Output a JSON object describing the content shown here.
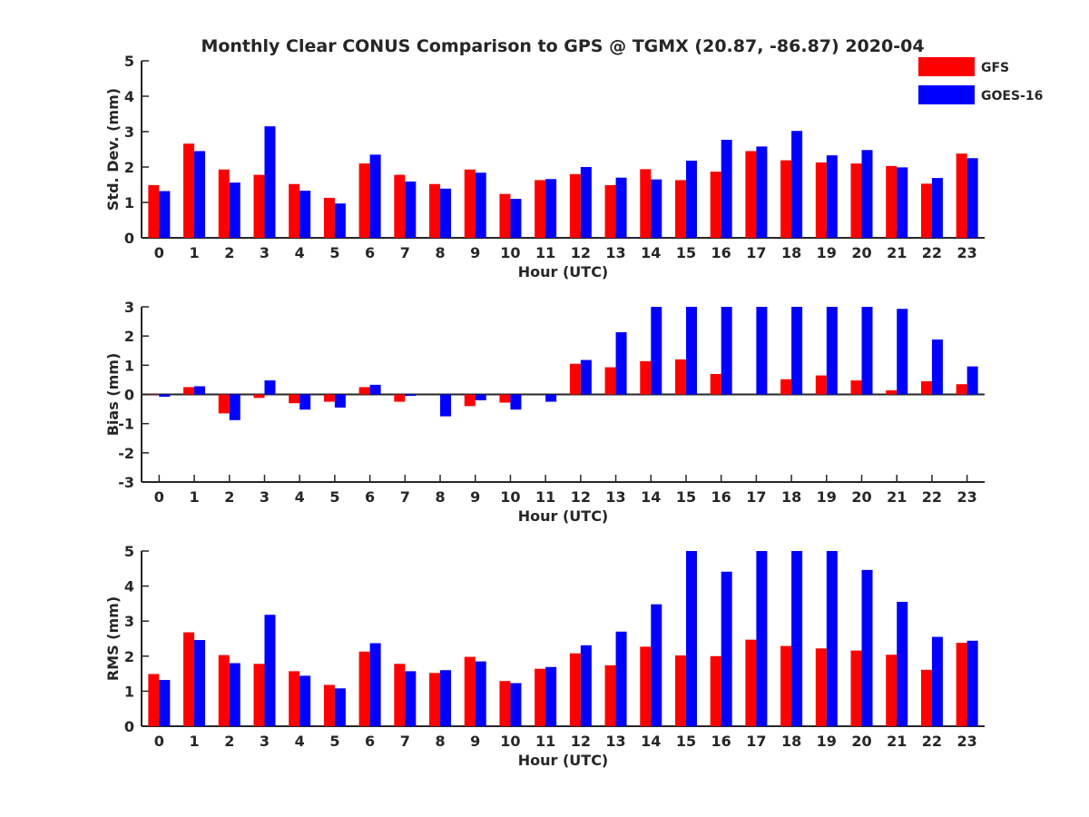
{
  "figure": {
    "title": "Monthly Clear CONUS Comparison to GPS @ TGMX (20.87, -86.87) 2020-04"
  },
  "legend": {
    "placement": "top-right",
    "entries": [
      {
        "name": "GFS",
        "color": "#ff0000"
      },
      {
        "name": "GOES-16",
        "color": "#0000ff"
      }
    ]
  },
  "chart_data": [
    {
      "type": "bar",
      "ylabel": "Std. Dev. (mm)",
      "xlabel": "Hour (UTC)",
      "ylim": [
        0,
        5
      ],
      "yticks": [
        0,
        1,
        2,
        3,
        4,
        5
      ],
      "categories": [
        "0",
        "1",
        "2",
        "3",
        "4",
        "5",
        "6",
        "7",
        "8",
        "9",
        "10",
        "11",
        "12",
        "13",
        "14",
        "15",
        "16",
        "17",
        "18",
        "19",
        "20",
        "21",
        "22",
        "23"
      ],
      "series": [
        {
          "name": "GFS",
          "color": "#ff0000",
          "values": [
            1.49,
            2.66,
            1.93,
            1.78,
            1.52,
            1.13,
            2.1,
            1.78,
            1.52,
            1.93,
            1.24,
            1.63,
            1.8,
            1.49,
            1.94,
            1.63,
            1.87,
            2.45,
            2.19,
            2.13,
            2.1,
            2.03,
            1.53,
            2.38
          ]
        },
        {
          "name": "GOES-16",
          "color": "#0000ff",
          "values": [
            1.32,
            2.45,
            1.56,
            3.15,
            1.33,
            0.97,
            2.35,
            1.59,
            1.39,
            1.84,
            1.1,
            1.66,
            2.0,
            1.7,
            1.65,
            2.18,
            2.77,
            2.58,
            3.02,
            2.33,
            2.48,
            1.99,
            1.69,
            2.25
          ]
        }
      ]
    },
    {
      "type": "bar",
      "ylabel": "Bias (mm)",
      "xlabel": "Hour (UTC)",
      "ylim": [
        -3,
        3
      ],
      "yticks": [
        -3,
        -2,
        -1,
        0,
        1,
        2,
        3
      ],
      "categories": [
        "0",
        "1",
        "2",
        "3",
        "4",
        "5",
        "6",
        "7",
        "8",
        "9",
        "10",
        "11",
        "12",
        "13",
        "14",
        "15",
        "16",
        "17",
        "18",
        "19",
        "20",
        "21",
        "22",
        "23"
      ],
      "series": [
        {
          "name": "GFS",
          "color": "#ff0000",
          "values": [
            0.01,
            0.25,
            -0.65,
            -0.12,
            -0.3,
            -0.25,
            0.25,
            -0.25,
            0.0,
            -0.4,
            -0.28,
            0.0,
            1.05,
            0.93,
            1.14,
            1.2,
            0.7,
            0.0,
            0.52,
            0.65,
            0.48,
            0.14,
            0.45,
            0.35
          ]
        },
        {
          "name": "GOES-16",
          "color": "#0000ff",
          "values": [
            -0.08,
            0.28,
            -0.88,
            0.48,
            -0.52,
            -0.45,
            0.33,
            -0.05,
            -0.75,
            -0.2,
            -0.52,
            -0.25,
            1.18,
            2.13,
            3.0,
            3.0,
            3.0,
            3.0,
            3.0,
            3.0,
            3.0,
            2.93,
            1.88,
            0.96
          ]
        }
      ]
    },
    {
      "type": "bar",
      "ylabel": "RMS (mm)",
      "xlabel": "Hour (UTC)",
      "ylim": [
        0,
        5
      ],
      "yticks": [
        0,
        1,
        2,
        3,
        4,
        5
      ],
      "categories": [
        "0",
        "1",
        "2",
        "3",
        "4",
        "5",
        "6",
        "7",
        "8",
        "9",
        "10",
        "11",
        "12",
        "13",
        "14",
        "15",
        "16",
        "17",
        "18",
        "19",
        "20",
        "21",
        "22",
        "23"
      ],
      "series": [
        {
          "name": "GFS",
          "color": "#ff0000",
          "values": [
            1.49,
            2.68,
            2.03,
            1.78,
            1.57,
            1.18,
            2.13,
            1.78,
            1.52,
            1.98,
            1.29,
            1.64,
            2.08,
            1.74,
            2.27,
            2.02,
            2.0,
            2.47,
            2.29,
            2.22,
            2.16,
            2.04,
            1.61,
            2.38
          ]
        },
        {
          "name": "GOES-16",
          "color": "#0000ff",
          "values": [
            1.32,
            2.46,
            1.8,
            3.18,
            1.44,
            1.08,
            2.37,
            1.57,
            1.6,
            1.85,
            1.23,
            1.69,
            2.31,
            2.7,
            3.48,
            5.0,
            4.41,
            5.0,
            5.0,
            5.0,
            4.46,
            3.55,
            2.55,
            2.44
          ]
        }
      ]
    }
  ]
}
